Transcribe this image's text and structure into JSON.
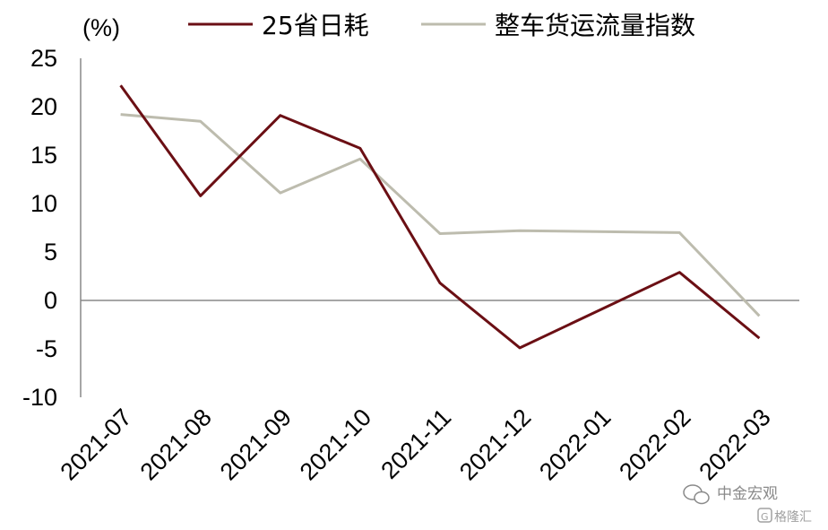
{
  "chart_data": {
    "type": "line",
    "ylabel": "(%)",
    "ylim": [
      -10,
      25
    ],
    "yticks": [
      25,
      20,
      15,
      10,
      5,
      0,
      -5,
      -10
    ],
    "categories": [
      "2021-07",
      "2021-08",
      "2021-09",
      "2021-10",
      "2021-11",
      "2021-12",
      "2022-01",
      "2022-02",
      "2022-03"
    ],
    "series": [
      {
        "name": "25省日耗",
        "color": "#6b0f14",
        "x": [
          "2021-07",
          "2021-08",
          "2021-09",
          "2021-10",
          "2021-11",
          "2021-12",
          "2022-02",
          "2022-03"
        ],
        "values": [
          22.2,
          10.8,
          19.1,
          15.7,
          1.8,
          -4.9,
          2.9,
          -3.9
        ]
      },
      {
        "name": "整车货运流量指数",
        "color": "#bdbcae",
        "x": [
          "2021-07",
          "2021-08",
          "2021-09",
          "2021-10",
          "2021-11",
          "2021-12",
          "2022-02",
          "2022-03"
        ],
        "values": [
          19.2,
          18.5,
          11.1,
          14.6,
          6.9,
          7.2,
          7.0,
          -1.6
        ]
      }
    ],
    "legend": "top",
    "grid": false,
    "zero_line": true
  },
  "watermark": {
    "line1": "中金宏观",
    "line2": "格隆汇"
  }
}
